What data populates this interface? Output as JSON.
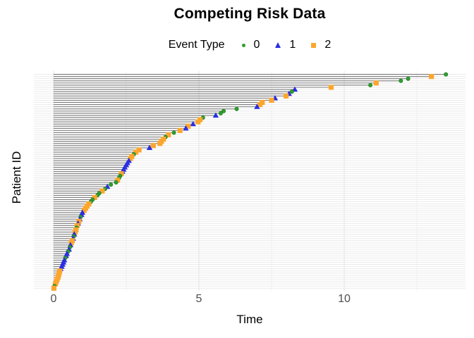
{
  "title": "Competing Risk Data",
  "legend": {
    "title": "Event Type",
    "items": [
      {
        "label": "0",
        "shape": "circle",
        "color": "#2f9e2f"
      },
      {
        "label": "1",
        "shape": "triangle",
        "color": "#2b2fe0"
      },
      {
        "label": "2",
        "shape": "square",
        "color": "#fca62e"
      }
    ]
  },
  "axes": {
    "x": {
      "label": "Time",
      "tick_labels": [
        "0",
        "5",
        "10"
      ],
      "ticks": [
        0,
        5,
        10
      ],
      "minor_ticks": [
        2.5,
        7.5,
        12.5
      ]
    },
    "y": {
      "label": "Patient ID",
      "tick_labels": []
    }
  },
  "chart_data": {
    "type": "scatter",
    "subtype": "competing-risk-event-plot",
    "title": "Competing Risk Data",
    "xlabel": "Time",
    "ylabel": "Patient ID",
    "xlim": [
      -0.7,
      14.25
    ],
    "x_ticks": [
      0,
      5,
      10
    ],
    "x_minor_ticks": [
      2.5,
      7.5,
      12.5
    ],
    "grid": true,
    "legend_position": "top",
    "legend_title": "Event Type",
    "n_patients": 100,
    "row_description": "One row per patient, sorted by event time (longest at top). Gray segment spans time 0 to event time; marker denotes event type.",
    "event_types": {
      "0": "circle green",
      "1": "triangle blue",
      "2": "square orange"
    },
    "event_colors": {
      "0": "#2f9e2f",
      "1": "#2b2fe0",
      "2": "#fca62e"
    },
    "patients_format": [
      "time",
      "event_type"
    ],
    "patients": [
      [
        13.5,
        0
      ],
      [
        13.0,
        2
      ],
      [
        12.2,
        0
      ],
      [
        11.95,
        0
      ],
      [
        11.1,
        2
      ],
      [
        10.9,
        0
      ],
      [
        9.55,
        2
      ],
      [
        8.3,
        1
      ],
      [
        8.2,
        0
      ],
      [
        8.1,
        1
      ],
      [
        8.0,
        2
      ],
      [
        7.62,
        1
      ],
      [
        7.5,
        2
      ],
      [
        7.18,
        2
      ],
      [
        7.1,
        2
      ],
      [
        7.0,
        1
      ],
      [
        6.3,
        0
      ],
      [
        5.85,
        0
      ],
      [
        5.75,
        0
      ],
      [
        5.58,
        1
      ],
      [
        5.14,
        0
      ],
      [
        5.04,
        2
      ],
      [
        4.97,
        2
      ],
      [
        4.8,
        1
      ],
      [
        4.63,
        2
      ],
      [
        4.55,
        1
      ],
      [
        4.35,
        2
      ],
      [
        4.14,
        0
      ],
      [
        3.95,
        2
      ],
      [
        3.85,
        0
      ],
      [
        3.78,
        2
      ],
      [
        3.71,
        2
      ],
      [
        3.66,
        2
      ],
      [
        3.43,
        2
      ],
      [
        3.3,
        1
      ],
      [
        2.94,
        2
      ],
      [
        2.83,
        2
      ],
      [
        2.76,
        0
      ],
      [
        2.69,
        2
      ],
      [
        2.64,
        2
      ],
      [
        2.59,
        1
      ],
      [
        2.54,
        1
      ],
      [
        2.5,
        1
      ],
      [
        2.45,
        1
      ],
      [
        2.41,
        1
      ],
      [
        2.37,
        1
      ],
      [
        2.33,
        2
      ],
      [
        2.29,
        0
      ],
      [
        2.25,
        0
      ],
      [
        2.2,
        2
      ],
      [
        2.15,
        0
      ],
      [
        1.97,
        0
      ],
      [
        1.85,
        1
      ],
      [
        1.77,
        0
      ],
      [
        1.67,
        2
      ],
      [
        1.57,
        0
      ],
      [
        1.51,
        0
      ],
      [
        1.41,
        2
      ],
      [
        1.34,
        0
      ],
      [
        1.28,
        0
      ],
      [
        1.21,
        2
      ],
      [
        1.15,
        2
      ],
      [
        1.1,
        2
      ],
      [
        1.05,
        2
      ],
      [
        0.99,
        1
      ],
      [
        0.96,
        1
      ],
      [
        0.93,
        0
      ],
      [
        0.9,
        1
      ],
      [
        0.87,
        2
      ],
      [
        0.84,
        1
      ],
      [
        0.81,
        2
      ],
      [
        0.79,
        0
      ],
      [
        0.77,
        2
      ],
      [
        0.74,
        2
      ],
      [
        0.71,
        1
      ],
      [
        0.69,
        0
      ],
      [
        0.67,
        1
      ],
      [
        0.64,
        2
      ],
      [
        0.61,
        2
      ],
      [
        0.58,
        1
      ],
      [
        0.56,
        0
      ],
      [
        0.53,
        1
      ],
      [
        0.5,
        0
      ],
      [
        0.46,
        1
      ],
      [
        0.43,
        1
      ],
      [
        0.4,
        0
      ],
      [
        0.37,
        1
      ],
      [
        0.34,
        1
      ],
      [
        0.31,
        1
      ],
      [
        0.28,
        1
      ],
      [
        0.24,
        1
      ],
      [
        0.21,
        2
      ],
      [
        0.19,
        2
      ],
      [
        0.17,
        2
      ],
      [
        0.15,
        2
      ],
      [
        0.12,
        2
      ],
      [
        0.09,
        2
      ],
      [
        0.06,
        2
      ],
      [
        0.03,
        0
      ],
      [
        0.01,
        2
      ]
    ]
  },
  "style": {
    "background": "#ffffff",
    "segment_color": "#7b7b7b",
    "row_gridline_color": "#e8e8e8",
    "major_gridline_color": "#e2e2e2",
    "minor_gridline_color": "#f0f0f0",
    "tick_label_color": "#4d4d4d",
    "title_color": "#000000"
  }
}
